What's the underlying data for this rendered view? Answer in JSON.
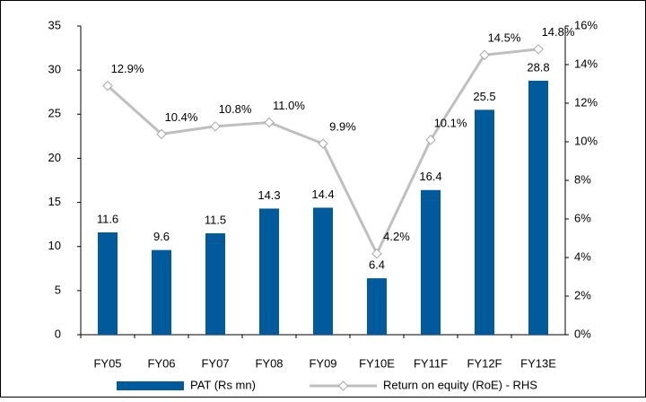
{
  "chart_data": {
    "type": "bar-line",
    "categories": [
      "FY05",
      "FY06",
      "FY07",
      "FY08",
      "FY09",
      "FY10E",
      "FY11F",
      "FY12F",
      "FY13E"
    ],
    "series": [
      {
        "name": "PAT (Rs mn)",
        "type": "bar",
        "color": "#005a9c",
        "values": [
          11.6,
          9.6,
          11.5,
          14.3,
          14.4,
          6.4,
          16.4,
          25.5,
          28.8
        ]
      },
      {
        "name": "Return on equity  (RoE) - RHS",
        "type": "line",
        "axis": "y2",
        "color": "#bfbfbf",
        "values": [
          12.9,
          10.4,
          10.8,
          11.0,
          9.9,
          4.2,
          10.1,
          14.5,
          14.8
        ],
        "value_labels": [
          "12.9%",
          "10.4%",
          "10.8%",
          "11.0%",
          "9.9%",
          "4.2%",
          "10.1%",
          "14.5%",
          "14.8%"
        ]
      }
    ],
    "ylim": [
      0,
      35
    ],
    "yticks": [
      0,
      5,
      10,
      15,
      20,
      25,
      30,
      35
    ],
    "y2lim": [
      0,
      16
    ],
    "y2ticks": [
      {
        "value": 0,
        "label": "0%"
      },
      {
        "value": 2,
        "label": "2%"
      },
      {
        "value": 4,
        "label": "4%"
      },
      {
        "value": 6,
        "label": "6%"
      },
      {
        "value": 8,
        "label": "8%"
      },
      {
        "value": 10,
        "label": "10%"
      },
      {
        "value": 12,
        "label": "12%"
      },
      {
        "value": 14,
        "label": "14%"
      },
      {
        "value": 16,
        "label": "16%"
      }
    ],
    "grid": false,
    "legend": "bottom"
  }
}
